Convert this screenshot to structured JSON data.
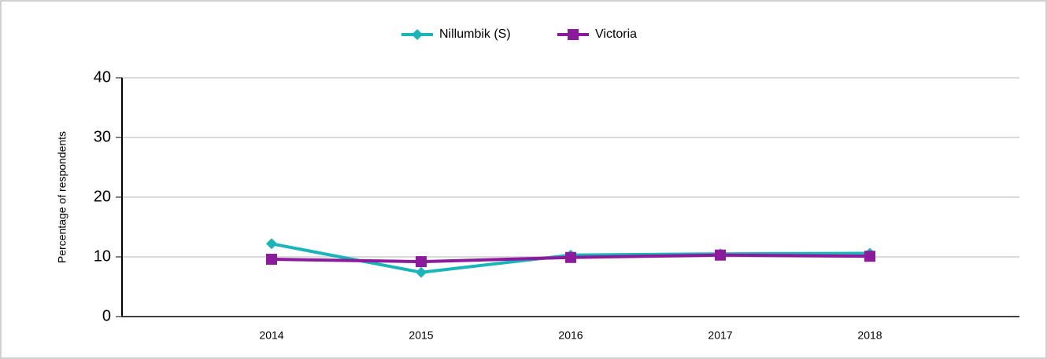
{
  "chart_data": {
    "type": "line",
    "y_label": "Percentage of respondents",
    "categories": [
      "2014",
      "2015",
      "2016",
      "2017",
      "2018"
    ],
    "series": [
      {
        "name": "Nillumbik (S)",
        "color": "#1ab5b8",
        "marker": "diamond",
        "values": [
          12.2,
          7.4,
          10.3,
          10.5,
          10.6
        ]
      },
      {
        "name": "Victoria",
        "color": "#8c1a9c",
        "marker": "square",
        "values": [
          9.6,
          9.2,
          9.9,
          10.3,
          10.1
        ]
      }
    ],
    "ylim": [
      0,
      40
    ],
    "yticks": [
      0,
      10,
      20,
      30,
      40
    ],
    "grid": true
  }
}
